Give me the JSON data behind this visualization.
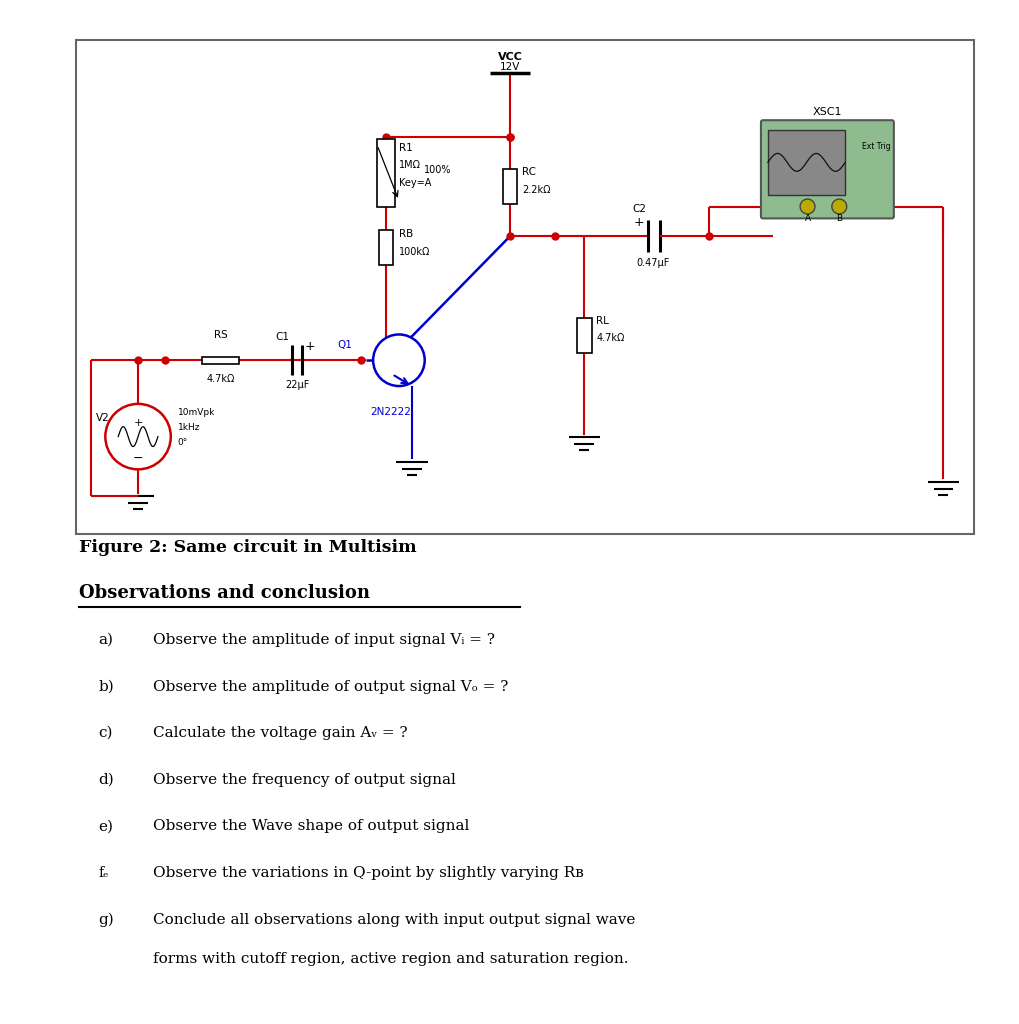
{
  "bg_color": "#ffffff",
  "wire_color": "#cc0000",
  "blue_color": "#0000cc",
  "black_color": "#000000",
  "figure_caption": "Figure 2: Same circuit in Multisim",
  "section_title": "Observations and conclusion",
  "obs_items": [
    [
      "a)",
      "Observe the amplitude of input signal Vᵢ = ?"
    ],
    [
      "b)",
      "Observe the amplitude of output signal Vₒ = ?"
    ],
    [
      "c)",
      "Calculate the voltage gain Aᵥ = ?"
    ],
    [
      "d)",
      "Observe the frequency of output signal"
    ],
    [
      "e)",
      "Observe the Wave shape of output signal"
    ],
    [
      "fₑ",
      "Observe the variations in Q-point by slightly varying Rв"
    ],
    [
      "g)",
      "Conclude all observations along with input output signal wave\nforms with cutoff region, active region and saturation region."
    ]
  ]
}
